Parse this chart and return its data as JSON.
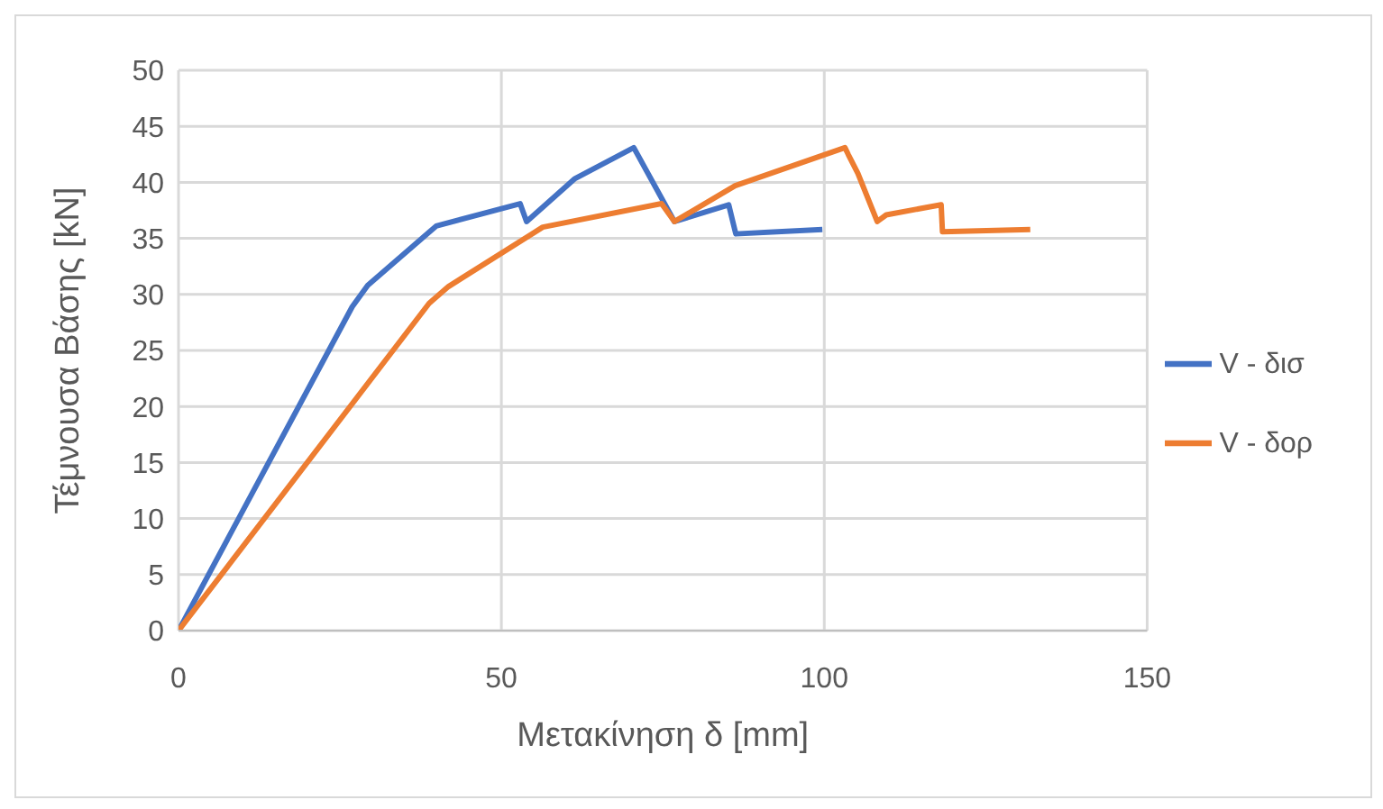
{
  "chart_data": {
    "type": "line",
    "xlabel": "Μετακίνηση δ [mm]",
    "ylabel": "Τέμνουσα Βάσης [kN]",
    "xlim": [
      0,
      150
    ],
    "xticks": [
      0,
      50,
      100,
      150
    ],
    "ylim": [
      0,
      50
    ],
    "yticks": [
      0,
      5,
      10,
      15,
      20,
      25,
      30,
      35,
      40,
      45,
      50
    ],
    "grid": true,
    "legend": "right",
    "marker": "none",
    "line_style": "solid",
    "series": [
      {
        "name": "V - δισ",
        "color": "#4472c4",
        "x": [
          0,
          26.9,
          29.3,
          39.9,
          52.9,
          53.9,
          61.3,
          70.5,
          76.8,
          85.2,
          86.3,
          99.7
        ],
        "values": [
          0,
          28.9,
          30.8,
          36.1,
          38.1,
          36.5,
          40.3,
          43.1,
          36.5,
          38.0,
          35.4,
          35.8
        ]
      },
      {
        "name": "V - δορ",
        "color": "#ed7d31",
        "x": [
          0,
          38.8,
          41.8,
          56.4,
          74.8,
          76.8,
          86.2,
          103.2,
          103.7,
          105.2,
          108.2,
          109.6,
          118.1,
          118.3,
          131.9
        ],
        "values": [
          0,
          29.2,
          30.7,
          36.0,
          38.1,
          36.5,
          39.7,
          43.1,
          42.5,
          40.8,
          36.5,
          37.1,
          38.0,
          35.6,
          35.8
        ]
      }
    ]
  }
}
